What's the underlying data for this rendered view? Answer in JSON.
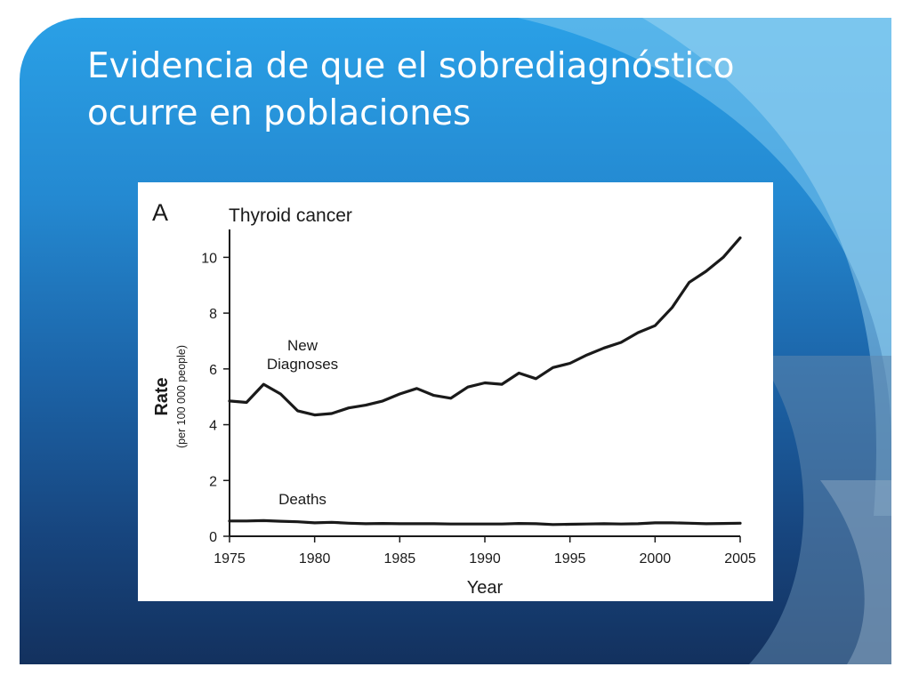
{
  "slide": {
    "title_line1": "Evidencia de que el sobrediagnóstico",
    "title_line2": "ocurre en poblaciones"
  },
  "colors": {
    "title_text": "#ffffff",
    "background_top": "#2aa0e6",
    "background_bottom": "#13315e",
    "line_color": "#1a1a1a"
  },
  "chart_data": {
    "type": "line",
    "panel_label": "A",
    "title": "Thyroid cancer",
    "xlabel": "Year",
    "ylabel": "Rate",
    "ylabel_sub": "(per 100 000 people)",
    "xlim": [
      1975,
      2005
    ],
    "ylim": [
      0,
      11
    ],
    "x_ticks": [
      1975,
      1980,
      1985,
      1990,
      1995,
      2000,
      2005
    ],
    "y_ticks": [
      0,
      2,
      4,
      6,
      8,
      10
    ],
    "grid": false,
    "legend": "none (series labelled inline)",
    "series": [
      {
        "name": "New Diagnoses",
        "label_lines": [
          "New",
          "Diagnoses"
        ],
        "x": [
          1975,
          1976,
          1977,
          1978,
          1979,
          1980,
          1981,
          1982,
          1983,
          1984,
          1985,
          1986,
          1987,
          1988,
          1989,
          1990,
          1991,
          1992,
          1993,
          1994,
          1995,
          1996,
          1997,
          1998,
          1999,
          2000,
          2001,
          2002,
          2003,
          2004,
          2005
        ],
        "values": [
          4.85,
          4.8,
          5.45,
          5.1,
          4.5,
          4.35,
          4.4,
          4.6,
          4.7,
          4.85,
          5.1,
          5.3,
          5.05,
          4.95,
          5.35,
          5.5,
          5.45,
          5.85,
          5.65,
          6.05,
          6.2,
          6.5,
          6.75,
          6.95,
          7.3,
          7.55,
          8.2,
          9.1,
          9.5,
          10.0,
          10.7
        ]
      },
      {
        "name": "Deaths",
        "label_lines": [
          "Deaths"
        ],
        "x": [
          1975,
          1976,
          1977,
          1978,
          1979,
          1980,
          1981,
          1982,
          1983,
          1984,
          1985,
          1986,
          1987,
          1988,
          1989,
          1990,
          1991,
          1992,
          1993,
          1994,
          1995,
          1996,
          1997,
          1998,
          1999,
          2000,
          2001,
          2002,
          2003,
          2004,
          2005
        ],
        "values": [
          0.55,
          0.55,
          0.56,
          0.54,
          0.52,
          0.48,
          0.5,
          0.47,
          0.45,
          0.46,
          0.45,
          0.45,
          0.45,
          0.44,
          0.44,
          0.44,
          0.44,
          0.46,
          0.45,
          0.42,
          0.43,
          0.44,
          0.45,
          0.44,
          0.45,
          0.48,
          0.48,
          0.47,
          0.45,
          0.46,
          0.47
        ]
      }
    ]
  }
}
